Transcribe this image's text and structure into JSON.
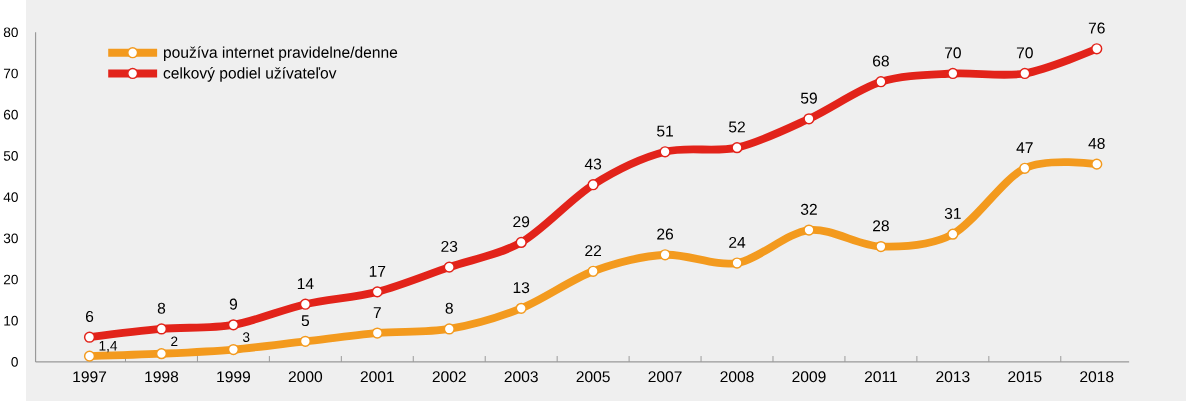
{
  "chart_data": {
    "type": "line",
    "categories": [
      "1997",
      "1998",
      "1999",
      "2000",
      "2001",
      "2002",
      "2003",
      "2005",
      "2007",
      "2008",
      "2009",
      "2011",
      "2013",
      "2015",
      "2018"
    ],
    "series": [
      {
        "name": "používa internet pravidelne/denne",
        "color": "#f39a1e",
        "values": [
          1.4,
          2,
          3,
          5,
          7,
          8,
          13,
          22,
          26,
          24,
          32,
          28,
          31,
          47,
          48
        ],
        "value_labels": [
          "1,4",
          "2",
          "3",
          "5",
          "7",
          "8",
          "13",
          "22",
          "26",
          "24",
          "32",
          "28",
          "31",
          "47",
          "48"
        ]
      },
      {
        "name": "celkový podiel užívateľov",
        "color": "#e2231a",
        "values": [
          6,
          8,
          9,
          14,
          17,
          23,
          29,
          43,
          51,
          52,
          59,
          68,
          70,
          70,
          76
        ],
        "value_labels": [
          "6",
          "8",
          "9",
          "14",
          "17",
          "23",
          "29",
          "43",
          "51",
          "52",
          "59",
          "68",
          "70",
          "70",
          "76"
        ]
      }
    ],
    "ylim": [
      0,
      80
    ],
    "yticks": [
      0,
      10,
      20,
      30,
      40,
      50,
      60,
      70,
      80
    ],
    "marker": "circle",
    "line_style": "solid",
    "legend": "top left",
    "grid": false
  }
}
